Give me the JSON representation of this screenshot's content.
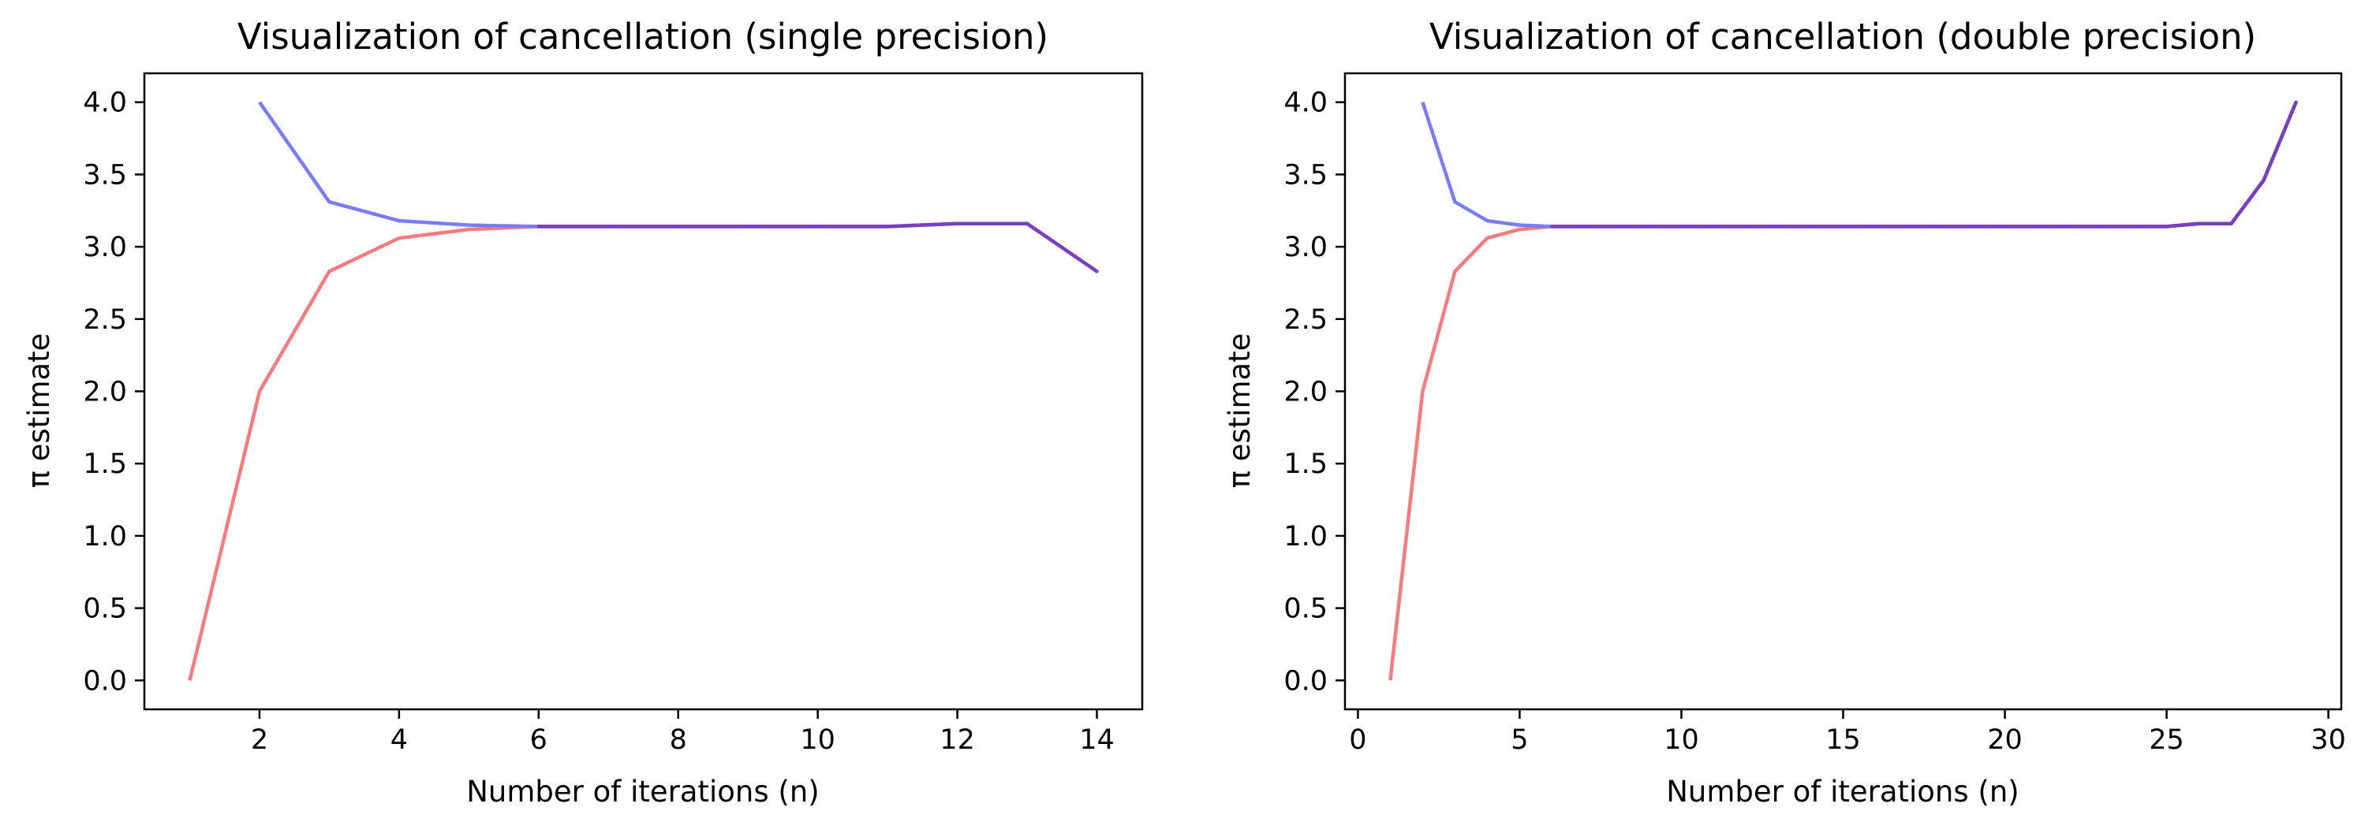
{
  "chart_data": [
    {
      "type": "line",
      "title": "Visualization of cancellation (single precision)",
      "xlabel": "Number of iterations (n)",
      "ylabel": "π estimate",
      "xlim": [
        0.35,
        14.65
      ],
      "ylim": [
        -0.2,
        4.2
      ],
      "xticks": [
        2,
        4,
        6,
        8,
        10,
        12,
        14
      ],
      "yticks": [
        0.0,
        0.5,
        1.0,
        1.5,
        2.0,
        2.5,
        3.0,
        3.5,
        4.0
      ],
      "xtick_labels": [
        "2",
        "4",
        "6",
        "8",
        "10",
        "12",
        "14"
      ],
      "ytick_labels": [
        "0.0",
        "0.5",
        "1.0",
        "1.5",
        "2.0",
        "2.5",
        "3.0",
        "3.5",
        "4.0"
      ],
      "grid": false,
      "series": [
        {
          "color": "#f77b7d",
          "x": [
            1,
            2,
            3,
            4,
            5,
            6,
            7,
            8,
            9,
            10,
            11,
            12,
            13,
            14
          ],
          "values": [
            0.0,
            2.0,
            2.83,
            3.06,
            3.12,
            3.14,
            3.14,
            3.14,
            3.14,
            3.14,
            3.14,
            3.16,
            3.16,
            2.83
          ]
        },
        {
          "color": "#7a7dfb",
          "x": [
            2,
            3,
            4,
            5,
            6,
            7,
            8,
            9,
            10,
            11,
            12,
            13,
            14
          ],
          "values": [
            4.0,
            3.31,
            3.18,
            3.15,
            3.14,
            3.14,
            3.14,
            3.14,
            3.14,
            3.14,
            3.16,
            3.16,
            2.83
          ]
        }
      ],
      "overlap_color": "#7a3fbf"
    },
    {
      "type": "line",
      "title": "Visualization of cancellation (double precision)",
      "xlabel": "Number of iterations (n)",
      "ylabel": "π estimate",
      "xlim": [
        -0.4,
        30.4
      ],
      "ylim": [
        -0.2,
        4.2
      ],
      "xticks": [
        0,
        5,
        10,
        15,
        20,
        25,
        30
      ],
      "yticks": [
        0.0,
        0.5,
        1.0,
        1.5,
        2.0,
        2.5,
        3.0,
        3.5,
        4.0
      ],
      "xtick_labels": [
        "0",
        "5",
        "10",
        "15",
        "20",
        "25",
        "30"
      ],
      "ytick_labels": [
        "0.0",
        "0.5",
        "1.0",
        "1.5",
        "2.0",
        "2.5",
        "3.0",
        "3.5",
        "4.0"
      ],
      "grid": false,
      "series": [
        {
          "color": "#f77b7d",
          "x": [
            1,
            2,
            3,
            4,
            5,
            6,
            7,
            8,
            9,
            10,
            11,
            12,
            13,
            14,
            15,
            16,
            17,
            18,
            19,
            20,
            21,
            22,
            23,
            24,
            25,
            26,
            27,
            28,
            29
          ],
          "values": [
            0.0,
            2.0,
            2.83,
            3.06,
            3.12,
            3.14,
            3.14,
            3.14,
            3.14,
            3.14,
            3.14,
            3.14,
            3.14,
            3.14,
            3.14,
            3.14,
            3.14,
            3.14,
            3.14,
            3.14,
            3.14,
            3.14,
            3.14,
            3.14,
            3.14,
            3.16,
            3.16,
            3.46,
            4.0
          ]
        },
        {
          "color": "#7a7dfb",
          "x": [
            2,
            3,
            4,
            5,
            6,
            7,
            8,
            9,
            10,
            11,
            12,
            13,
            14,
            15,
            16,
            17,
            18,
            19,
            20,
            21,
            22,
            23,
            24,
            25,
            26,
            27,
            28,
            29
          ],
          "values": [
            4.0,
            3.31,
            3.18,
            3.15,
            3.14,
            3.14,
            3.14,
            3.14,
            3.14,
            3.14,
            3.14,
            3.14,
            3.14,
            3.14,
            3.14,
            3.14,
            3.14,
            3.14,
            3.14,
            3.14,
            3.14,
            3.14,
            3.14,
            3.14,
            3.16,
            3.16,
            3.46,
            4.0
          ]
        }
      ],
      "overlap_color": "#7a3fbf"
    }
  ]
}
